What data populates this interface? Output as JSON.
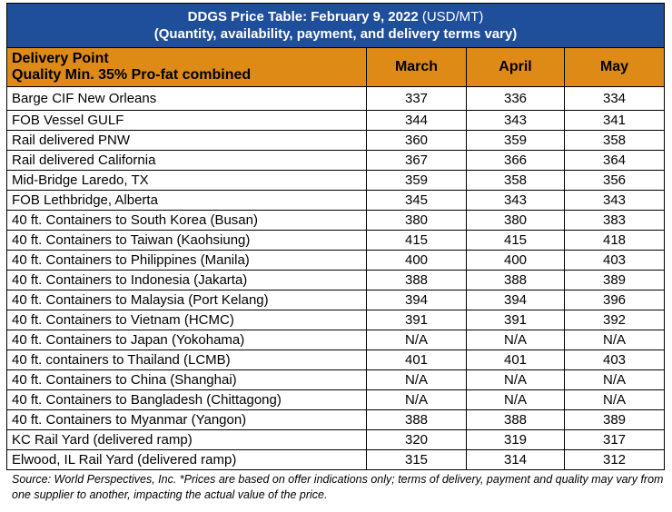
{
  "title": {
    "main": "DDGS Price Table: February 9, 2022",
    "unit": "(USD/MT)",
    "subtitle": "(Quantity, availability, payment, and delivery terms vary)"
  },
  "header": {
    "col1_line1": "Delivery Point",
    "col1_line2": "Quality Min. 35% Pro-fat combined",
    "months": [
      "March",
      "April",
      "May"
    ]
  },
  "rows": [
    {
      "location": "Barge CIF New Orleans",
      "march": "337",
      "april": "336",
      "may": "334"
    },
    {
      "location": "FOB Vessel GULF",
      "march": "344",
      "april": "343",
      "may": "341"
    },
    {
      "location": "Rail delivered PNW",
      "march": "360",
      "april": "359",
      "may": "358"
    },
    {
      "location": "Rail delivered California",
      "march": "367",
      "april": "366",
      "may": "364"
    },
    {
      "location": "Mid-Bridge Laredo, TX",
      "march": "359",
      "april": "358",
      "may": "356"
    },
    {
      "location": "FOB Lethbridge, Alberta",
      "march": "345",
      "april": "343",
      "may": "343"
    },
    {
      "location": "40 ft. Containers to South Korea (Busan)",
      "march": "380",
      "april": "380",
      "may": "383"
    },
    {
      "location": "40 ft. Containers to Taiwan (Kaohsiung)",
      "march": "415",
      "april": "415",
      "may": "418"
    },
    {
      "location": "40 ft. Containers to Philippines (Manila)",
      "march": "400",
      "april": "400",
      "may": "403"
    },
    {
      "location": "40 ft. Containers to Indonesia (Jakarta)",
      "march": "388",
      "april": "388",
      "may": "389"
    },
    {
      "location": "40 ft. Containers to Malaysia (Port Kelang)",
      "march": "394",
      "april": "394",
      "may": "396"
    },
    {
      "location": "40 ft. Containers to Vietnam (HCMC)",
      "march": "391",
      "april": "391",
      "may": "392"
    },
    {
      "location": "40 ft. Containers to Japan (Yokohama)",
      "march": "N/A",
      "april": "N/A",
      "may": "N/A"
    },
    {
      "location": "40 ft. containers to Thailand (LCMB)",
      "march": "401",
      "april": "401",
      "may": "403"
    },
    {
      "location": "40 ft. Containers to China (Shanghai)",
      "march": "N/A",
      "april": "N/A",
      "may": "N/A"
    },
    {
      "location": "40 ft. Containers to Bangladesh (Chittagong)",
      "march": "N/A",
      "april": "N/A",
      "may": "N/A"
    },
    {
      "location": "40 ft. Containers to Myanmar (Yangon)",
      "march": "388",
      "april": "388",
      "may": "389"
    },
    {
      "location": "KC Rail Yard (delivered ramp)",
      "march": "320",
      "april": "319",
      "may": "317"
    },
    {
      "location": "Elwood, IL Rail Yard (delivered ramp)",
      "march": "315",
      "april": "314",
      "may": "312"
    }
  ],
  "source": "Source: World Perspectives, Inc. *Prices are based on offer indications only; terms of delivery, payment and quality may vary from one supplier to another, impacting the actual value of the price."
}
